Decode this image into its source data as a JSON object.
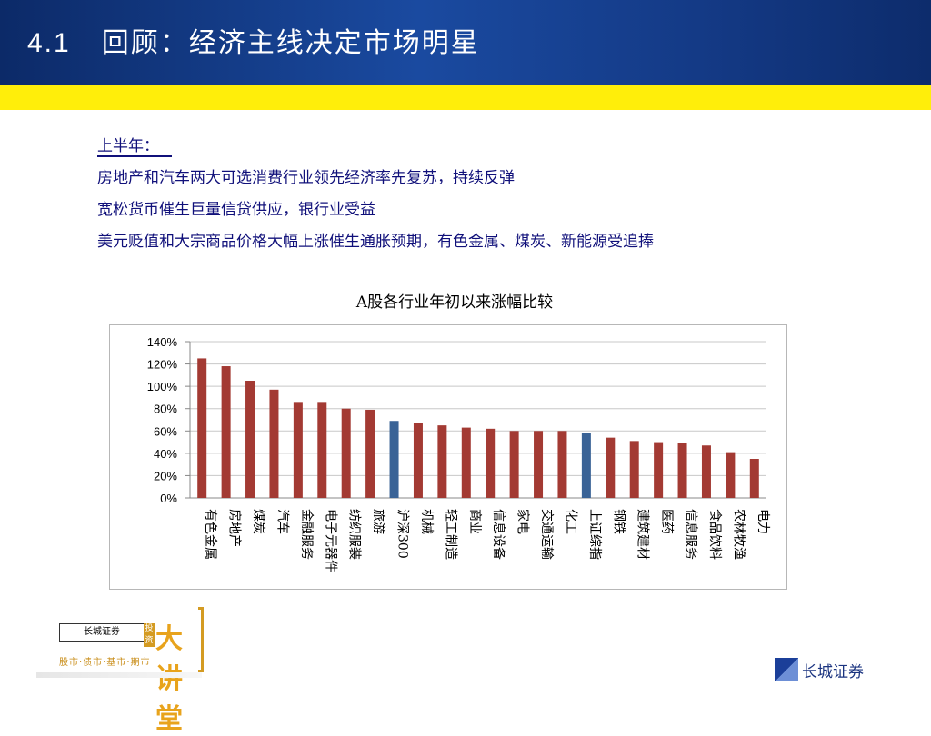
{
  "header": {
    "number": "4.1",
    "title": "回顾：经济主线决定市场明星"
  },
  "content": {
    "lines": [
      "上半年：",
      "房地产和汽车两大可选消费行业领先经济率先复苏，持续反弹",
      "宽松货币催生巨量信贷供应，银行业受益",
      "美元贬值和大宗商品价格大幅上涨催生通胀预期，有色金属、煤炭、新能源受追捧"
    ]
  },
  "chart_data": {
    "type": "bar",
    "title": "A股各行业年初以来涨幅比较",
    "categories": [
      "有色金属",
      "房地产",
      "煤炭",
      "汽车",
      "金融服务",
      "电子元器件",
      "纺织服装",
      "旅游",
      "沪深300",
      "机械",
      "轻工制造",
      "商业",
      "信息设备",
      "家电",
      "交通运输",
      "化工",
      "上证综指",
      "钢铁",
      "建筑建材",
      "医药",
      "信息服务",
      "食品饮料",
      "农林牧渔",
      "电力"
    ],
    "values": [
      125,
      118,
      105,
      97,
      86,
      86,
      80,
      79,
      69,
      67,
      65,
      63,
      62,
      60,
      60,
      60,
      58,
      54,
      51,
      50,
      49,
      47,
      41,
      35
    ],
    "highlighted": [
      "沪深300",
      "上证综指"
    ],
    "ylim": [
      0,
      140
    ],
    "yticks": [
      "0%",
      "20%",
      "40%",
      "60%",
      "80%",
      "100%",
      "120%",
      "140%"
    ],
    "grid": true,
    "colors": {
      "bar": "#a33a33",
      "highlight": "#3a6396",
      "grid": "#c8c8c8"
    }
  },
  "footer": {
    "left_logo": {
      "badge": "长城证券",
      "invest": "投资",
      "big": "大讲堂",
      "slogan": "股市·债市·基市·期市"
    },
    "right_logo": {
      "name": "长城证券"
    }
  }
}
